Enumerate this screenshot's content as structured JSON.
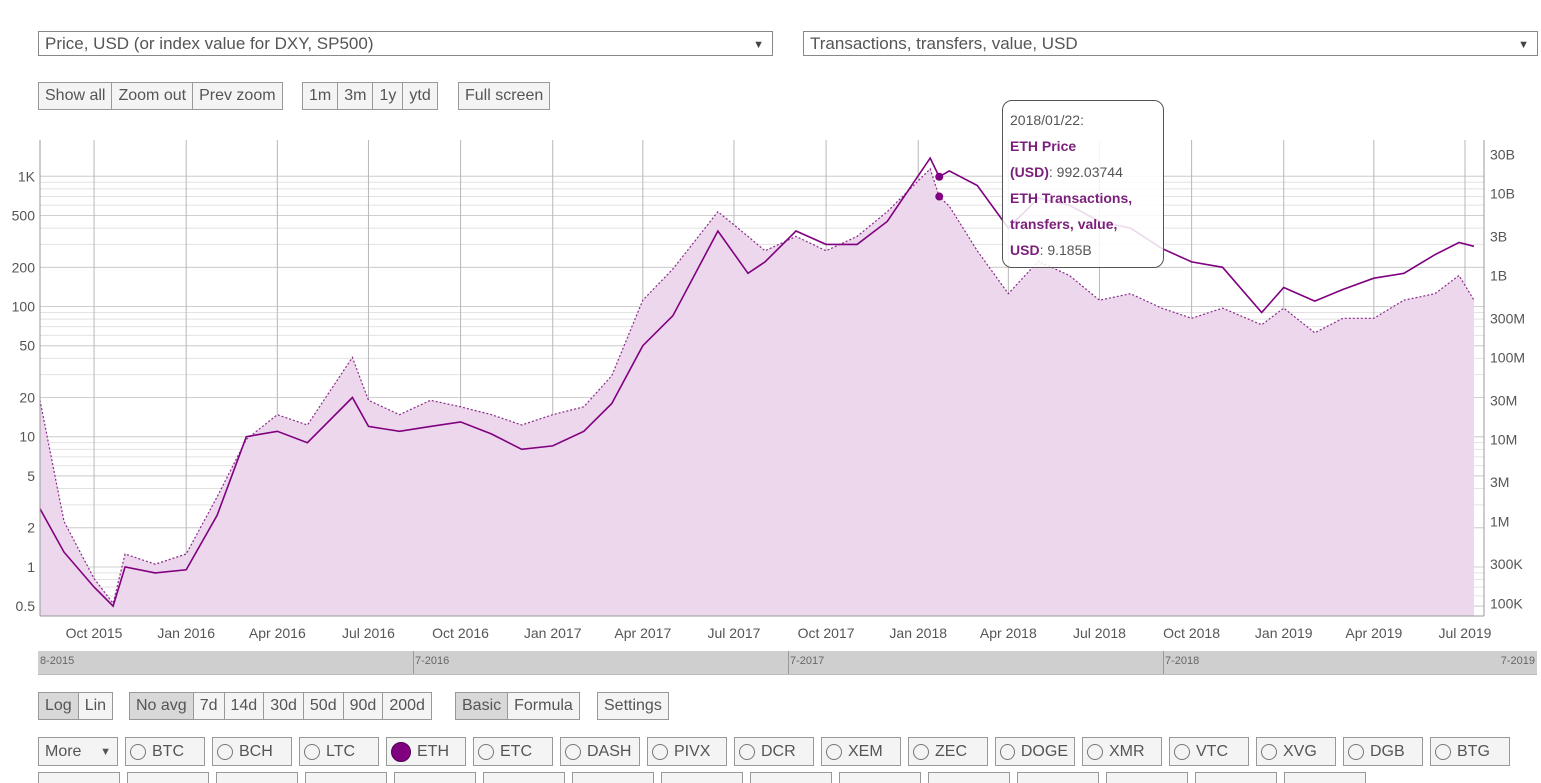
{
  "selectors": {
    "left": "Price, USD (or index value for DXY, SP500)",
    "right": "Transactions, transfers, value, USD"
  },
  "zoom_buttons": [
    "Show all",
    "Zoom out",
    "Prev zoom"
  ],
  "range_buttons": [
    "1m",
    "3m",
    "1y",
    "ytd"
  ],
  "fullscreen_label": "Full screen",
  "scale_buttons": [
    "Log",
    "Lin"
  ],
  "avg_buttons": [
    "No avg",
    "7d",
    "14d",
    "30d",
    "50d",
    "90d",
    "200d"
  ],
  "mode_buttons": [
    "Basic",
    "Formula"
  ],
  "settings_label": "Settings",
  "more_label": "More",
  "coins": [
    "BTC",
    "BCH",
    "LTC",
    "ETH",
    "ETC",
    "DASH",
    "PIVX",
    "DCR",
    "XEM",
    "ZEC",
    "DOGE",
    "XMR",
    "VTC",
    "XVG",
    "DGB",
    "BTG"
  ],
  "selected_coin": "ETH",
  "navigator_labels": [
    "8-2015",
    "7-2016",
    "7-2017",
    "7-2018",
    "7-2019"
  ],
  "tooltip": {
    "date": "2018/01/22:",
    "series1_name_a": "ETH Price",
    "series1_name_b": "(USD)",
    "series1_value": "992.03744",
    "series2_name_a": "ETH Transactions,",
    "series2_name_b": "transfers, value,",
    "series2_name_c": "USD",
    "series2_value": "9.185B"
  },
  "colors": {
    "accent": "#800080",
    "area_fill": "#ecd7ec"
  },
  "chart_data": {
    "type": "line",
    "x_ticks": [
      "Oct 2015",
      "Jan 2016",
      "Apr 2016",
      "Jul 2016",
      "Oct 2016",
      "Jan 2017",
      "Apr 2017",
      "Jul 2017",
      "Oct 2017",
      "Jan 2018",
      "Apr 2018",
      "Jul 2018",
      "Oct 2018",
      "Jan 2019",
      "Apr 2019",
      "Jul 2019"
    ],
    "y_left_ticks": [
      {
        "label": "1K",
        "v": 1000
      },
      {
        "label": "500",
        "v": 500
      },
      {
        "label": "200",
        "v": 200
      },
      {
        "label": "100",
        "v": 100
      },
      {
        "label": "50",
        "v": 50
      },
      {
        "label": "20",
        "v": 20
      },
      {
        "label": "10",
        "v": 10
      },
      {
        "label": "5",
        "v": 5
      },
      {
        "label": "2",
        "v": 2
      },
      {
        "label": "1",
        "v": 1
      },
      {
        "label": "0.5",
        "v": 0.5
      }
    ],
    "y_right_ticks": [
      {
        "label": "30B",
        "v": 30000000000.0
      },
      {
        "label": "10B",
        "v": 10000000000.0
      },
      {
        "label": "3B",
        "v": 3000000000.0
      },
      {
        "label": "1B",
        "v": 1000000000.0
      },
      {
        "label": "300M",
        "v": 300000000.0
      },
      {
        "label": "100M",
        "v": 100000000.0
      },
      {
        "label": "30M",
        "v": 30000000.0
      },
      {
        "label": "10M",
        "v": 10000000.0
      },
      {
        "label": "3M",
        "v": 3000000.0
      },
      {
        "label": "1M",
        "v": 1000000.0
      },
      {
        "label": "300K",
        "v": 300000.0
      },
      {
        "label": "100K",
        "v": 100000.0
      }
    ],
    "y_left_scale": "log",
    "y_right_scale": "log",
    "grid": true,
    "series": [
      {
        "name": "ETH Price (USD)",
        "axis": "left",
        "style": "solid",
        "points": [
          [
            "2015-08-08",
            2.8
          ],
          [
            "2015-09-01",
            1.3
          ],
          [
            "2015-10-01",
            0.7
          ],
          [
            "2015-10-20",
            0.5
          ],
          [
            "2015-11-01",
            1.0
          ],
          [
            "2015-12-01",
            0.9
          ],
          [
            "2016-01-01",
            0.95
          ],
          [
            "2016-02-01",
            2.5
          ],
          [
            "2016-03-01",
            10
          ],
          [
            "2016-04-01",
            11
          ],
          [
            "2016-05-01",
            9
          ],
          [
            "2016-06-15",
            20
          ],
          [
            "2016-07-01",
            12
          ],
          [
            "2016-08-01",
            11
          ],
          [
            "2016-09-01",
            12
          ],
          [
            "2016-10-01",
            13
          ],
          [
            "2016-11-01",
            10.5
          ],
          [
            "2016-12-01",
            8
          ],
          [
            "2017-01-01",
            8.5
          ],
          [
            "2017-02-01",
            11
          ],
          [
            "2017-03-01",
            18
          ],
          [
            "2017-04-01",
            50
          ],
          [
            "2017-05-01",
            85
          ],
          [
            "2017-06-15",
            380
          ],
          [
            "2017-07-15",
            180
          ],
          [
            "2017-08-01",
            220
          ],
          [
            "2017-09-01",
            380
          ],
          [
            "2017-10-01",
            300
          ],
          [
            "2017-11-01",
            300
          ],
          [
            "2017-12-01",
            450
          ],
          [
            "2018-01-13",
            1380
          ],
          [
            "2018-01-22",
            992
          ],
          [
            "2018-02-01",
            1100
          ],
          [
            "2018-03-01",
            850
          ],
          [
            "2018-04-01",
            400
          ],
          [
            "2018-05-01",
            680
          ],
          [
            "2018-06-01",
            600
          ],
          [
            "2018-07-01",
            450
          ],
          [
            "2018-08-01",
            400
          ],
          [
            "2018-09-01",
            280
          ],
          [
            "2018-10-01",
            220
          ],
          [
            "2018-11-01",
            200
          ],
          [
            "2018-12-10",
            90
          ],
          [
            "2019-01-01",
            140
          ],
          [
            "2019-02-01",
            110
          ],
          [
            "2019-03-01",
            135
          ],
          [
            "2019-04-01",
            165
          ],
          [
            "2019-05-01",
            180
          ],
          [
            "2019-06-01",
            250
          ],
          [
            "2019-06-25",
            310
          ],
          [
            "2019-07-10",
            290
          ]
        ]
      },
      {
        "name": "ETH Transactions, transfers, value, USD",
        "axis": "right",
        "style": "dotted",
        "points": [
          [
            "2015-08-08",
            30000000.0
          ],
          [
            "2015-09-01",
            1000000.0
          ],
          [
            "2015-10-01",
            200000.0
          ],
          [
            "2015-10-20",
            100000.0
          ],
          [
            "2015-11-01",
            400000.0
          ],
          [
            "2015-12-01",
            300000.0
          ],
          [
            "2016-01-01",
            400000.0
          ],
          [
            "2016-02-01",
            2000000.0
          ],
          [
            "2016-03-01",
            10000000.0
          ],
          [
            "2016-04-01",
            20000000.0
          ],
          [
            "2016-05-01",
            15000000.0
          ],
          [
            "2016-06-15",
            100000000.0
          ],
          [
            "2016-07-01",
            30000000.0
          ],
          [
            "2016-08-01",
            20000000.0
          ],
          [
            "2016-09-01",
            30000000.0
          ],
          [
            "2016-10-01",
            25000000.0
          ],
          [
            "2016-11-01",
            20000000.0
          ],
          [
            "2016-12-01",
            15000000.0
          ],
          [
            "2017-01-01",
            20000000.0
          ],
          [
            "2017-02-01",
            25000000.0
          ],
          [
            "2017-03-01",
            60000000.0
          ],
          [
            "2017-04-01",
            500000000.0
          ],
          [
            "2017-05-01",
            1200000000.0
          ],
          [
            "2017-06-15",
            6000000000.0
          ],
          [
            "2017-07-15",
            3000000000.0
          ],
          [
            "2017-08-01",
            2000000000.0
          ],
          [
            "2017-09-01",
            3000000000.0
          ],
          [
            "2017-10-01",
            2000000000.0
          ],
          [
            "2017-11-01",
            3000000000.0
          ],
          [
            "2017-12-01",
            6000000000.0
          ],
          [
            "2018-01-13",
            20000000000.0
          ],
          [
            "2018-01-22",
            9185000000.0
          ],
          [
            "2018-02-01",
            7000000000.0
          ],
          [
            "2018-03-01",
            2000000000.0
          ],
          [
            "2018-04-01",
            600000000.0
          ],
          [
            "2018-05-01",
            1500000000.0
          ],
          [
            "2018-06-01",
            1000000000.0
          ],
          [
            "2018-07-01",
            500000000.0
          ],
          [
            "2018-08-01",
            600000000.0
          ],
          [
            "2018-09-01",
            400000000.0
          ],
          [
            "2018-10-01",
            300000000.0
          ],
          [
            "2018-11-01",
            400000000.0
          ],
          [
            "2018-12-10",
            250000000.0
          ],
          [
            "2019-01-01",
            400000000.0
          ],
          [
            "2019-02-01",
            200000000.0
          ],
          [
            "2019-03-01",
            300000000.0
          ],
          [
            "2019-04-01",
            300000000.0
          ],
          [
            "2019-05-01",
            500000000.0
          ],
          [
            "2019-06-01",
            600000000.0
          ],
          [
            "2019-06-25",
            1000000000.0
          ],
          [
            "2019-07-10",
            500000000.0
          ]
        ]
      }
    ]
  }
}
